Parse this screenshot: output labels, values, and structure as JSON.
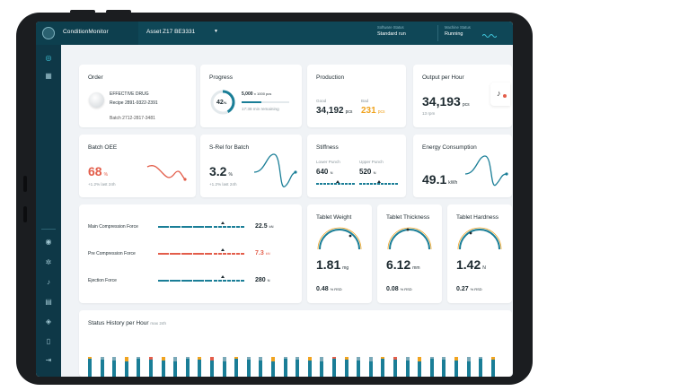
{
  "topbar": {
    "app_title": "ConditionMonitor",
    "asset": "Asset Z17 BE3331",
    "software_status_label": "Software Status",
    "software_status_value": "Standard run",
    "machine_status_label": "Machine Status",
    "machine_status_value": "Running"
  },
  "sidebar": {
    "top_icons": [
      "dashboard-icon",
      "grid-icon"
    ],
    "bottom_icons": [
      "user-icon",
      "settings-icon",
      "bell-icon",
      "document-icon",
      "shield-icon",
      "book-icon",
      "logout-icon"
    ]
  },
  "order": {
    "title": "Order",
    "product": "EFFECTIVE DRUG",
    "recipe": "Recipe 2891-9322-2391",
    "batch": "Batch 2712-2817-3481"
  },
  "progress": {
    "title": "Progress",
    "percent_label": "42",
    "percent_unit": "%",
    "percent": 42,
    "count": "5,000",
    "count_unit": "x 1000 pcs",
    "remaining": "17:38 min remaining"
  },
  "production": {
    "title": "Production",
    "good_label": "Good",
    "good_value": "34,192",
    "good_unit": "pcs",
    "bad_label": "Bad",
    "bad_value": "231",
    "bad_unit": "pcs"
  },
  "output": {
    "title": "Output per Hour",
    "value": "34,193",
    "unit": "pcs",
    "rpm": "13 rpm"
  },
  "batch_oee": {
    "title": "Batch OEE",
    "value": "68",
    "unit": "%",
    "delta": "+1.2% last 24h"
  },
  "srel": {
    "title": "S-Rel for Batch",
    "value": "3.2",
    "unit": "%",
    "delta": "+1.2% last 24h"
  },
  "stiffness": {
    "title": "Stiffness",
    "lower_label": "Lower Punch",
    "lower_value": "640",
    "lower_unit": "N",
    "upper_label": "Upper Punch",
    "upper_value": "520",
    "upper_unit": "N"
  },
  "energy": {
    "title": "Energy Consumption",
    "value": "49.1",
    "unit": "kWh"
  },
  "forces": [
    {
      "label": "Main Compression Force",
      "value": "22.5",
      "unit": "kN",
      "color": "#1a7e97"
    },
    {
      "label": "Pre Compression Force",
      "value": "7.3",
      "unit": "kN",
      "color": "#e35d4a"
    },
    {
      "label": "Ejection Force",
      "value": "280",
      "unit": "N",
      "color": "#1a7e97"
    }
  ],
  "tablet_weight": {
    "title": "Tablet Weight",
    "value": "1.81",
    "unit": "mg",
    "rsd": "0.48",
    "rsd_unit": "% RSD"
  },
  "tablet_thickness": {
    "title": "Tablet Thickness",
    "value": "6.12",
    "unit": "mm",
    "rsd": "0.08",
    "rsd_unit": "% RSD"
  },
  "tablet_hardness": {
    "title": "Tablet Hardness",
    "value": "1.42",
    "unit": "N",
    "rsd": "0.27",
    "rsd_unit": "% RSD"
  },
  "status_history": {
    "title": "Status History per Hour",
    "subtitle": "max 24h"
  },
  "colors": {
    "primary": "#0f4757",
    "accent": "#1a7e97",
    "red": "#e35d4a",
    "orange": "#f0a31f"
  }
}
